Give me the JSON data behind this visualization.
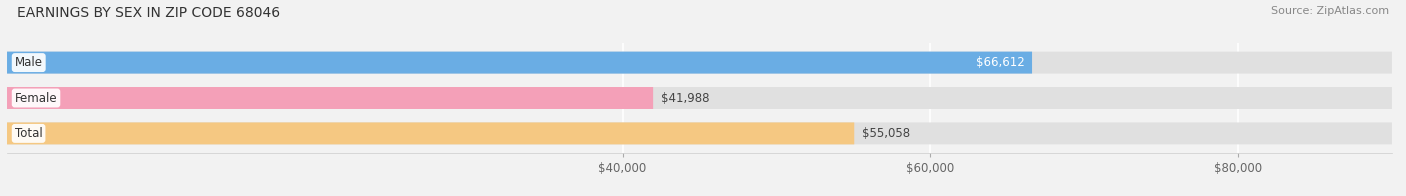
{
  "title": "EARNINGS BY SEX IN ZIP CODE 68046",
  "source": "Source: ZipAtlas.com",
  "categories": [
    "Male",
    "Female",
    "Total"
  ],
  "values": [
    66612,
    41988,
    55058
  ],
  "bar_colors": [
    "#6aade4",
    "#f4a0b8",
    "#f5c882"
  ],
  "bar_labels": [
    "$66,612",
    "$41,988",
    "$55,058"
  ],
  "xmin": 0,
  "xmax": 90000,
  "xlim_display_min": 37000,
  "xticks": [
    40000,
    60000,
    80000
  ],
  "xtick_labels": [
    "$40,000",
    "$60,000",
    "$80,000"
  ],
  "background_color": "#f2f2f2",
  "bar_bg_color": "#e0e0e0",
  "title_fontsize": 10,
  "source_fontsize": 8,
  "label_fontsize": 8.5,
  "tick_fontsize": 8.5,
  "cat_label_fontsize": 8.5
}
